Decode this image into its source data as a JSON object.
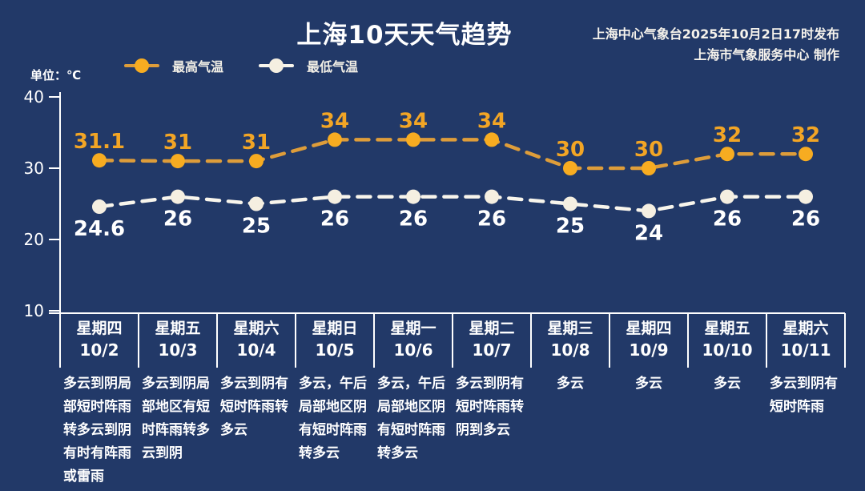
{
  "header": {
    "title": "上海10天天气趋势",
    "issued_by": "上海中心气象台2025年10月2日17时发布",
    "produced_by": "上海市气象服务中心 制作"
  },
  "unit_label": "单位：℃",
  "colors": {
    "background": "#223968",
    "axis": "#FFFFFF",
    "max_dot": "#F7AC21",
    "max_line": "#DE9D3A",
    "max_label": "#F2A525",
    "min_dot": "#F5EFE1",
    "min_line": "#F8F5EC",
    "min_label": "#FFFFFF"
  },
  "legend": [
    {
      "label": "最高气温",
      "series": "max"
    },
    {
      "label": "最低气温",
      "series": "min"
    }
  ],
  "chart_data": {
    "type": "line",
    "title": "上海10天天气趋势",
    "ylabel": "单位：℃",
    "ylim": [
      10,
      40
    ],
    "yticks": [
      40,
      30,
      20,
      10
    ],
    "grid": false,
    "legend_position": "top",
    "categories": [
      {
        "weekday": "星期四",
        "date": "10/2",
        "description": "多云到阴局部短时阵雨转多云到阴有时有阵雨或雷雨"
      },
      {
        "weekday": "星期五",
        "date": "10/3",
        "description": "多云到阴局部地区有短时阵雨转多云到阴"
      },
      {
        "weekday": "星期六",
        "date": "10/4",
        "description": "多云到阴有短时阵雨转多云"
      },
      {
        "weekday": "星期日",
        "date": "10/5",
        "description": "多云，午后局部地区阴有短时阵雨转多云"
      },
      {
        "weekday": "星期一",
        "date": "10/6",
        "description": "多云，午后局部地区阴有短时阵雨转多云"
      },
      {
        "weekday": "星期二",
        "date": "10/7",
        "description": "多云到阴有短时阵雨转阴到多云"
      },
      {
        "weekday": "星期三",
        "date": "10/8",
        "description": "多云"
      },
      {
        "weekday": "星期四",
        "date": "10/9",
        "description": "多云"
      },
      {
        "weekday": "星期五",
        "date": "10/10",
        "description": "多云"
      },
      {
        "weekday": "星期六",
        "date": "10/11",
        "description": "多云到阴有短时阵雨"
      }
    ],
    "series": [
      {
        "name": "最高气温",
        "key": "max",
        "label_position": "above",
        "values": [
          31.1,
          31,
          31,
          34,
          34,
          34,
          30,
          30,
          32,
          32
        ]
      },
      {
        "name": "最低气温",
        "key": "min",
        "label_position": "below",
        "values": [
          24.6,
          26,
          25,
          26,
          26,
          26,
          25,
          24,
          26,
          26
        ]
      }
    ]
  }
}
